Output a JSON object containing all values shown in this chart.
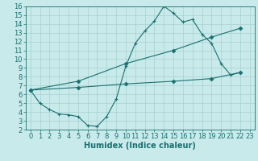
{
  "bg_color": "#c8eaea",
  "line_color": "#1a7070",
  "grid_color": "#a8d0d0",
  "xlabel": "Humidex (Indice chaleur)",
  "xlim": [
    -0.5,
    23.5
  ],
  "ylim": [
    2,
    16
  ],
  "xticks": [
    0,
    1,
    2,
    3,
    4,
    5,
    6,
    7,
    8,
    9,
    10,
    11,
    12,
    13,
    14,
    15,
    16,
    17,
    18,
    19,
    20,
    21,
    22,
    23
  ],
  "yticks": [
    2,
    3,
    4,
    5,
    6,
    7,
    8,
    9,
    10,
    11,
    12,
    13,
    14,
    15,
    16
  ],
  "line1_x": [
    0,
    1,
    2,
    3,
    4,
    5,
    6,
    7,
    8,
    9,
    10,
    11,
    12,
    13,
    14,
    15,
    16,
    17,
    18,
    19,
    20,
    21,
    22
  ],
  "line1_y": [
    6.5,
    5.0,
    4.3,
    3.8,
    3.7,
    3.5,
    2.5,
    2.4,
    3.5,
    5.5,
    9.2,
    11.8,
    13.2,
    14.3,
    16.0,
    15.2,
    14.2,
    14.5,
    12.8,
    11.8,
    9.5,
    8.2,
    8.5
  ],
  "line2_x": [
    0,
    5,
    10,
    15,
    19,
    22
  ],
  "line2_y": [
    6.5,
    7.5,
    9.5,
    11.0,
    12.5,
    13.5
  ],
  "line3_x": [
    0,
    5,
    10,
    15,
    19,
    22
  ],
  "line3_y": [
    6.5,
    6.8,
    7.2,
    7.5,
    7.8,
    8.5
  ],
  "font_size_label": 7,
  "font_size_tick": 6
}
